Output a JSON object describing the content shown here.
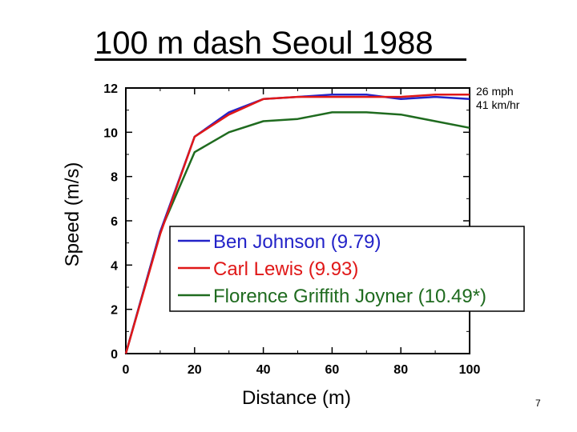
{
  "slide": {
    "title": "100 m dash Seoul 1988",
    "speed_note_line1": "26 mph",
    "speed_note_line2": "41 km/hr",
    "page_number": "7"
  },
  "colors": {
    "ben_johnson": "#2323c8",
    "carl_lewis": "#e01818",
    "florence_griffith_joyner": "#1f6b1f",
    "axis": "#000000"
  },
  "chart_data": {
    "type": "line",
    "xlabel": "Distance (m)",
    "ylabel": "Speed (m/s)",
    "xlim": [
      0,
      100
    ],
    "ylim": [
      0,
      12
    ],
    "xticks": [
      0,
      20,
      40,
      60,
      80,
      100
    ],
    "yticks": [
      0,
      2,
      4,
      6,
      8,
      10,
      12
    ],
    "grid": false,
    "legend_position": "lower-right",
    "x": [
      0,
      10,
      20,
      30,
      40,
      50,
      60,
      70,
      80,
      90,
      100
    ],
    "series": [
      {
        "name": "Ben Johnson (9.79)",
        "color_key": "ben_johnson",
        "values": [
          0,
          5.5,
          9.8,
          10.9,
          11.5,
          11.6,
          11.7,
          11.7,
          11.5,
          11.6,
          11.5
        ]
      },
      {
        "name": "Carl Lewis (9.93)",
        "color_key": "carl_lewis",
        "values": [
          0,
          5.4,
          9.8,
          10.8,
          11.5,
          11.6,
          11.6,
          11.6,
          11.6,
          11.7,
          11.7
        ]
      },
      {
        "name": "Florence Griffith Joyner (10.49*)",
        "color_key": "florence_griffith_joyner",
        "values": [
          0,
          5.5,
          9.1,
          10.0,
          10.5,
          10.6,
          10.9,
          10.9,
          10.8,
          10.5,
          10.2
        ]
      }
    ]
  }
}
